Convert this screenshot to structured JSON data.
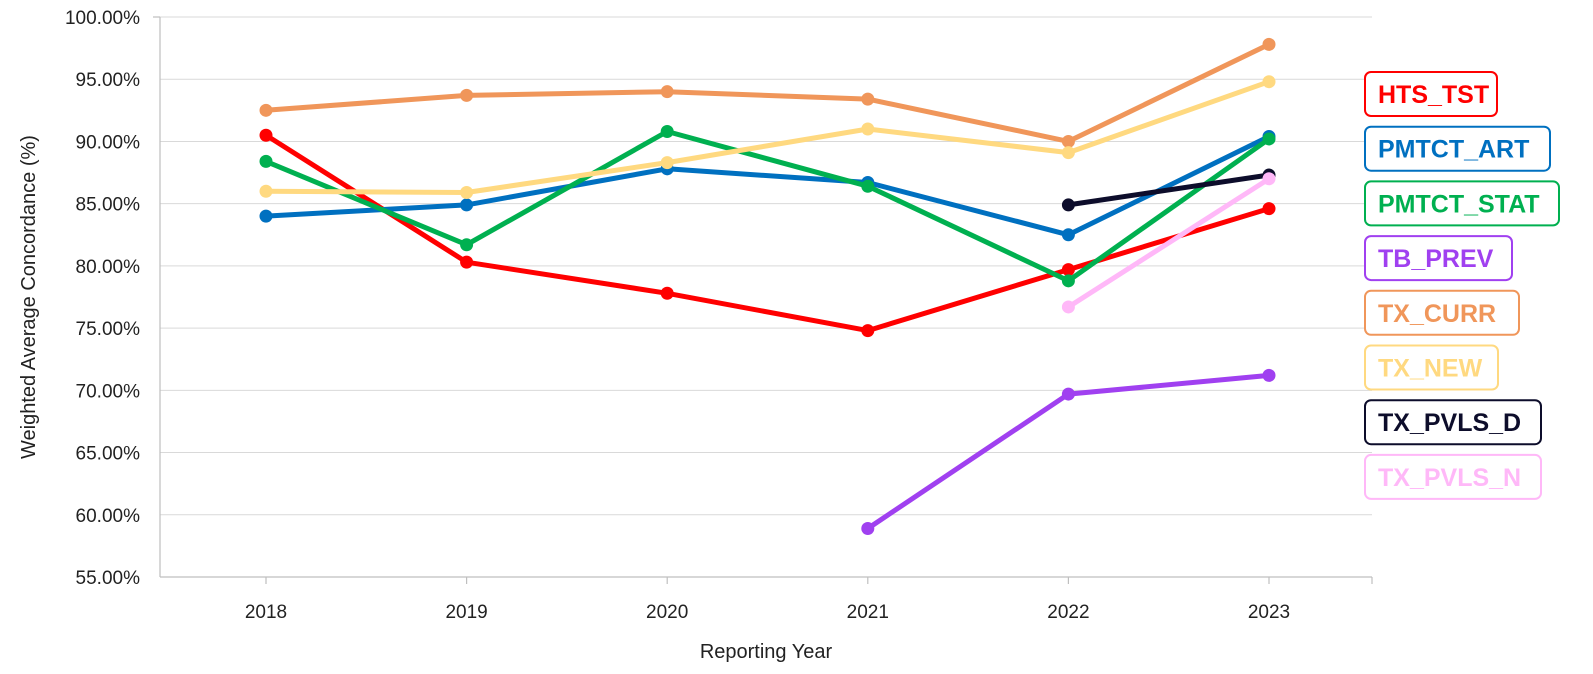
{
  "chart_data": {
    "type": "line",
    "title": "",
    "xlabel": "Reporting Year",
    "ylabel": "Weighted Average Concordance (%)",
    "categories": [
      "2018",
      "2019",
      "2020",
      "2021",
      "2022",
      "2023"
    ],
    "ylim": [
      55,
      100
    ],
    "yticks": [
      "55.00%",
      "60.00%",
      "65.00%",
      "70.00%",
      "75.00%",
      "80.00%",
      "85.00%",
      "90.00%",
      "95.00%",
      "100.00%"
    ],
    "grid": true,
    "legend_position": "right",
    "series": [
      {
        "name": "HTS_TST",
        "color": "#ff0000",
        "values": [
          90.5,
          80.3,
          77.8,
          74.8,
          79.7,
          84.6
        ]
      },
      {
        "name": "PMTCT_ART",
        "color": "#0070c0",
        "values": [
          84.0,
          84.9,
          87.8,
          86.7,
          82.5,
          90.4
        ]
      },
      {
        "name": "PMTCT_STAT",
        "color": "#00b050",
        "values": [
          88.4,
          81.7,
          90.8,
          86.4,
          78.8,
          90.2
        ]
      },
      {
        "name": "TB_PREV",
        "color": "#a040f0",
        "values": [
          null,
          null,
          null,
          58.9,
          69.7,
          71.2
        ]
      },
      {
        "name": "TX_CURR",
        "color": "#f0965a",
        "values": [
          92.5,
          93.7,
          94.0,
          93.4,
          90.0,
          97.8
        ]
      },
      {
        "name": "TX_NEW",
        "color": "#ffd980",
        "values": [
          86.0,
          85.9,
          88.3,
          91.0,
          89.1,
          94.8
        ]
      },
      {
        "name": "TX_PVLS_D",
        "color": "#0d0d2b",
        "values": [
          null,
          null,
          null,
          null,
          84.9,
          87.3
        ]
      },
      {
        "name": "TX_PVLS_N",
        "color": "#ffb8f8",
        "values": [
          null,
          null,
          null,
          null,
          76.7,
          87.0
        ]
      }
    ]
  }
}
